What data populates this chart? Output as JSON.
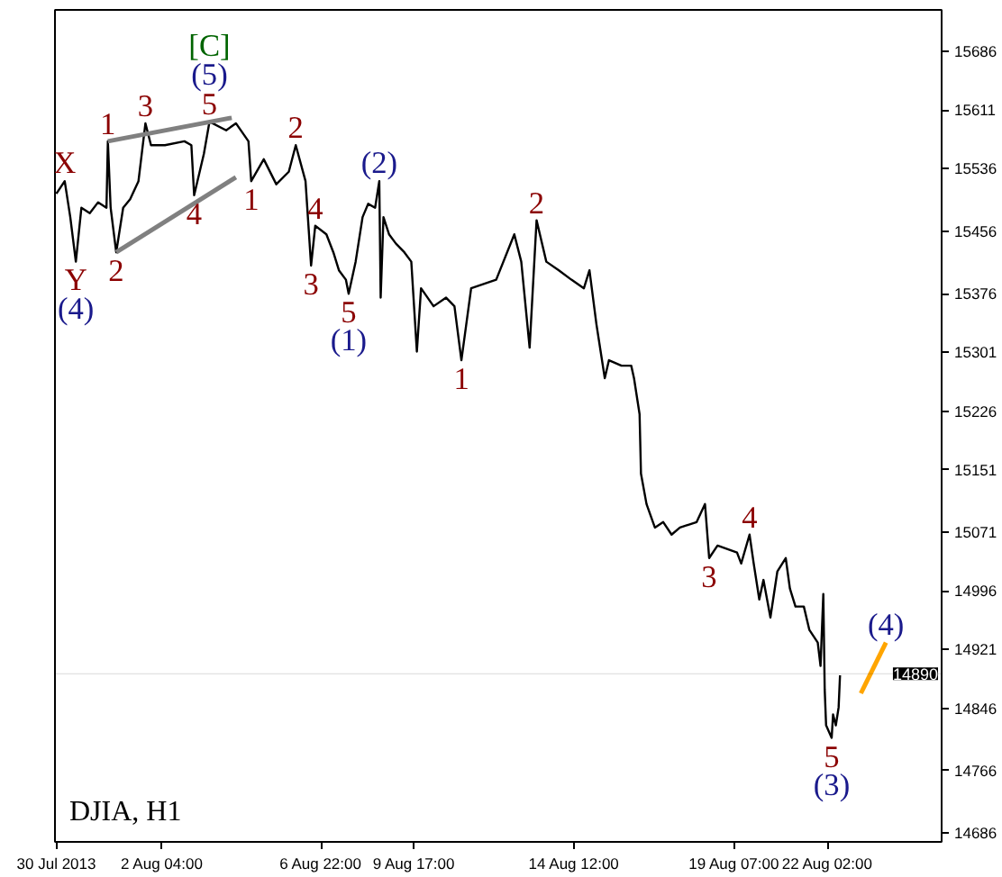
{
  "chart_data": {
    "type": "line",
    "title": "DJIA, H1",
    "xlim": [
      "2013-07-29T23:00",
      "2013-08-25T12:00"
    ],
    "ylim": [
      14675,
      15739
    ],
    "xticks": [
      {
        "value": "2013-07-30T00:00",
        "label": "30 Jul 2013"
      },
      {
        "value": "2013-08-02T04:00",
        "label": "2 Aug 04:00"
      },
      {
        "value": "2013-08-06T22:00",
        "label": "6 Aug 22:00"
      },
      {
        "value": "2013-08-09T17:00",
        "label": "9 Aug 17:00"
      },
      {
        "value": "2013-08-14T12:00",
        "label": "14 Aug 12:00"
      },
      {
        "value": "2013-08-19T07:00",
        "label": "19 Aug 07:00"
      },
      {
        "value": "2013-08-22T02:00",
        "label": "22 Aug 02:00"
      }
    ],
    "yticks": [
      14686,
      14766,
      14846,
      14921,
      14996,
      15071,
      15151,
      15226,
      15301,
      15376,
      15456,
      15536,
      15611,
      15686
    ],
    "grid": false,
    "marker": "none",
    "line_style": "solid",
    "series": [
      {
        "color": "#000000",
        "x": [
          "2013-07-30T00:00",
          "2013-07-30T06:00",
          "2013-07-30T10:00",
          "2013-07-30T14:00",
          "2013-07-30T18:00",
          "2013-07-31T00:00",
          "2013-07-31T06:00",
          "2013-07-31T12:00",
          "2013-07-31T13:00",
          "2013-07-31T15:00",
          "2013-07-31T19:00",
          "2013-08-01T00:00",
          "2013-08-01T05:00",
          "2013-08-01T11:00",
          "2013-08-01T16:00",
          "2013-08-01T20:00",
          "2013-08-02T06:00",
          "2013-08-02T20:00",
          "2013-08-03T01:00",
          "2013-08-03T03:00",
          "2013-08-03T10:00",
          "2013-08-03T14:00",
          "2013-08-04T02:00",
          "2013-08-04T09:00",
          "2013-08-04T18:00",
          "2013-08-04T20:00",
          "2013-08-05T05:00",
          "2013-08-05T14:00",
          "2013-08-05T23:00",
          "2013-08-06T04:00",
          "2013-08-06T11:00",
          "2013-08-06T15:00",
          "2013-08-06T18:00",
          "2013-08-07T02:00",
          "2013-08-07T07:00",
          "2013-08-07T11:00",
          "2013-08-07T16:00",
          "2013-08-07T18:00",
          "2013-08-07T23:00",
          "2013-08-08T04:00",
          "2013-08-08T08:00",
          "2013-08-08T13:00",
          "2013-08-08T16:00",
          "2013-08-08T17:00",
          "2013-08-08T19:00",
          "2013-08-08T23:00",
          "2013-08-09T04:00",
          "2013-08-09T10:00",
          "2013-08-09T15:00",
          "2013-08-09T19:00",
          "2013-08-09T22:00",
          "2013-08-10T07:00",
          "2013-08-10T16:00",
          "2013-08-10T22:00",
          "2013-08-11T03:00",
          "2013-08-11T10:00",
          "2013-08-12T04:00",
          "2013-08-12T17:00",
          "2013-08-12T22:00",
          "2013-08-13T04:00",
          "2013-08-13T09:00",
          "2013-08-13T16:00",
          "2013-08-14T01:00",
          "2013-08-14T10:00",
          "2013-08-14T19:00",
          "2013-08-14T23:00",
          "2013-08-15T04:00",
          "2013-08-15T10:00",
          "2013-08-15T13:00",
          "2013-08-15T22:00",
          "2013-08-16T05:00",
          "2013-08-16T07:00",
          "2013-08-16T11:00",
          "2013-08-16T12:00",
          "2013-08-16T16:00",
          "2013-08-16T22:00",
          "2013-08-17T04:00",
          "2013-08-17T10:00",
          "2013-08-17T16:00",
          "2013-08-18T04:00",
          "2013-08-18T10:00",
          "2013-08-18T13:00",
          "2013-08-18T19:00",
          "2013-08-19T09:00",
          "2013-08-19T12:00",
          "2013-08-19T18:00",
          "2013-08-19T21:00",
          "2013-08-20T01:00",
          "2013-08-20T04:00",
          "2013-08-20T09:00",
          "2013-08-20T14:00",
          "2013-08-20T20:00",
          "2013-08-20T23:00",
          "2013-08-21T03:00",
          "2013-08-21T09:00",
          "2013-08-21T13:00",
          "2013-08-21T19:00",
          "2013-08-21T21:00",
          "2013-08-21T23:00",
          "2013-08-22T00:00",
          "2013-08-22T01:00",
          "2013-08-22T05:00",
          "2013-08-22T06:00",
          "2013-08-22T08:00",
          "2013-08-22T10:00",
          "2013-08-22T11:00"
        ],
        "values": [
          15504,
          15520,
          15474,
          15417,
          15486,
          15479,
          15493,
          15486,
          15571,
          15486,
          15429,
          15486,
          15497,
          15520,
          15594,
          15566,
          15566,
          15571,
          15566,
          15502,
          15555,
          15596,
          15585,
          15594,
          15571,
          15520,
          15548,
          15516,
          15532,
          15566,
          15520,
          15412,
          15463,
          15452,
          15429,
          15406,
          15394,
          15376,
          15417,
          15474,
          15491,
          15486,
          15520,
          15371,
          15474,
          15452,
          15440,
          15429,
          15417,
          15302,
          15383,
          15360,
          15371,
          15360,
          15291,
          15383,
          15394,
          15452,
          15417,
          15307,
          15470,
          15417,
          15406,
          15394,
          15383,
          15406,
          15337,
          15268,
          15291,
          15284,
          15284,
          15268,
          15222,
          15146,
          15107,
          15077,
          15084,
          15068,
          15077,
          15084,
          15107,
          15038,
          15054,
          15045,
          15031,
          15068,
          15031,
          14985,
          15010,
          14962,
          15021,
          15038,
          14999,
          14976,
          14976,
          14946,
          14930,
          14900,
          14992,
          14870,
          14824,
          14808,
          14838,
          14824,
          14847,
          14888
        ]
      },
      {
        "color": "#808080",
        "x": [
          "2013-07-31T13:00",
          "2013-08-04T06:00"
        ],
        "values": [
          15571,
          15601
        ]
      },
      {
        "color": "#808080",
        "x": [
          "2013-07-31T19:00",
          "2013-08-04T09:00"
        ],
        "values": [
          15429,
          15525
        ]
      },
      {
        "color": "#ffa500",
        "x": [
          "2013-08-23T02:00",
          "2013-08-23T20:00"
        ],
        "values": [
          14865,
          14930
        ]
      }
    ],
    "ref_lines": [
      {
        "axis": "y",
        "value": 14890,
        "label": "14890",
        "color": "#000000"
      }
    ],
    "annotations": [
      {
        "text": "X",
        "x": "2013-07-30T06:00",
        "y": 15520
      },
      {
        "text": "Y",
        "x": "2013-07-30T14:00",
        "y": 15417
      },
      {
        "text": "(4)",
        "x": "2013-07-30T14:00",
        "y": 15417
      },
      {
        "text": "1",
        "x": "2013-07-31T13:00",
        "y": 15571
      },
      {
        "text": "2",
        "x": "2013-07-31T19:00",
        "y": 15429
      },
      {
        "text": "3",
        "x": "2013-08-01T16:00",
        "y": 15594
      },
      {
        "text": "4",
        "x": "2013-08-03T03:00",
        "y": 15502
      },
      {
        "text": "5",
        "x": "2013-08-03T14:00",
        "y": 15596
      },
      {
        "text": "(5)",
        "x": "2013-08-03T14:00",
        "y": 15596
      },
      {
        "text": "[C]",
        "x": "2013-08-03T14:00",
        "y": 15596
      },
      {
        "text": "1",
        "x": "2013-08-04T20:00",
        "y": 15520
      },
      {
        "text": "2",
        "x": "2013-08-06T04:00",
        "y": 15566
      },
      {
        "text": "3",
        "x": "2013-08-06T15:00",
        "y": 15412
      },
      {
        "text": "4",
        "x": "2013-08-06T18:00",
        "y": 15463
      },
      {
        "text": "5",
        "x": "2013-08-07T18:00",
        "y": 15376
      },
      {
        "text": "(1)",
        "x": "2013-08-07T18:00",
        "y": 15376
      },
      {
        "text": "(2)",
        "x": "2013-08-08T16:00",
        "y": 15520
      },
      {
        "text": "1",
        "x": "2013-08-11T03:00",
        "y": 15291
      },
      {
        "text": "2",
        "x": "2013-08-13T09:00",
        "y": 15470
      },
      {
        "text": "3",
        "x": "2013-08-18T13:00",
        "y": 15038
      },
      {
        "text": "4",
        "x": "2013-08-19T18:00",
        "y": 15068
      },
      {
        "text": "5",
        "x": "2013-08-22T05:00",
        "y": 14808
      },
      {
        "text": "(3)",
        "x": "2013-08-22T05:00",
        "y": 14808
      },
      {
        "text": "(4)",
        "x": "2013-08-23T20:00",
        "y": 14930
      }
    ]
  }
}
